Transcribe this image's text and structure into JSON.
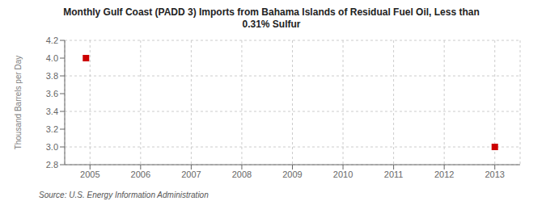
{
  "chart_data": {
    "type": "scatter",
    "title": "Monthly Gulf Coast (PADD 3) Imports from Bahama Islands of Residual Fuel Oil, Less than\n0.31% Sulfur",
    "ylabel": "Thousand Barrels per Day",
    "annotations": [
      "Source: U.S. Energy Information Administration"
    ],
    "x": [
      2004.92,
      2013.0
    ],
    "values": [
      4.0,
      3.0
    ],
    "color": "#cc0000",
    "marker": "square",
    "xlim": [
      2004.5,
      2013.5
    ],
    "ylim": [
      2.8,
      4.2
    ],
    "xticks": [
      2005,
      2006,
      2007,
      2008,
      2009,
      2010,
      2011,
      2012,
      2013
    ],
    "yticks": [
      2.8,
      {
        "value": 3.0,
        "label": "3.0"
      },
      3.2,
      3.4,
      3.6,
      3.8,
      {
        "value": 4.0,
        "label": "4.0"
      },
      4.2
    ],
    "grid": true
  }
}
